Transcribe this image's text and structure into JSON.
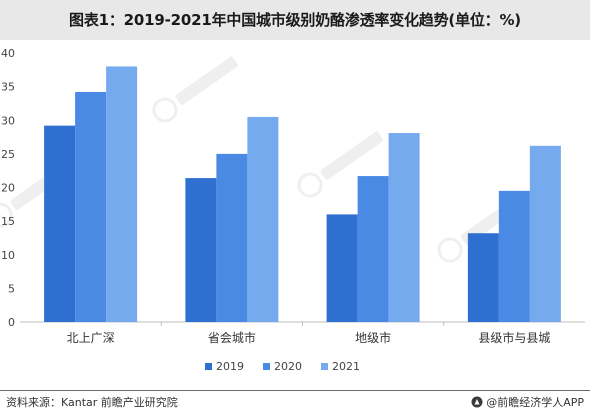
{
  "chart_data": {
    "type": "bar",
    "title": "图表1：2019-2021年中国城市级别奶酪渗透率变化趋势(单位：%)",
    "categories": [
      "北上广深",
      "省会城市",
      "地级市",
      "县级市与县城"
    ],
    "series": [
      {
        "name": "2019",
        "color": "#2f6fd0",
        "values": [
          29.2,
          21.4,
          16.0,
          13.2
        ]
      },
      {
        "name": "2020",
        "color": "#4a8ae4",
        "values": [
          34.2,
          25.0,
          21.7,
          19.5
        ]
      },
      {
        "name": "2021",
        "color": "#76aaee",
        "values": [
          38.0,
          30.5,
          28.1,
          26.2
        ]
      }
    ],
    "ylim": [
      0,
      40
    ],
    "yticks": [
      0,
      5,
      10,
      15,
      20,
      25,
      30,
      35,
      40
    ],
    "xlabel": "",
    "ylabel": "",
    "grid": false,
    "legend_position": "bottom"
  },
  "footer": {
    "source": "资料来源：Kantar 前瞻产业研究院",
    "brand": "@前瞻经济学人APP"
  }
}
